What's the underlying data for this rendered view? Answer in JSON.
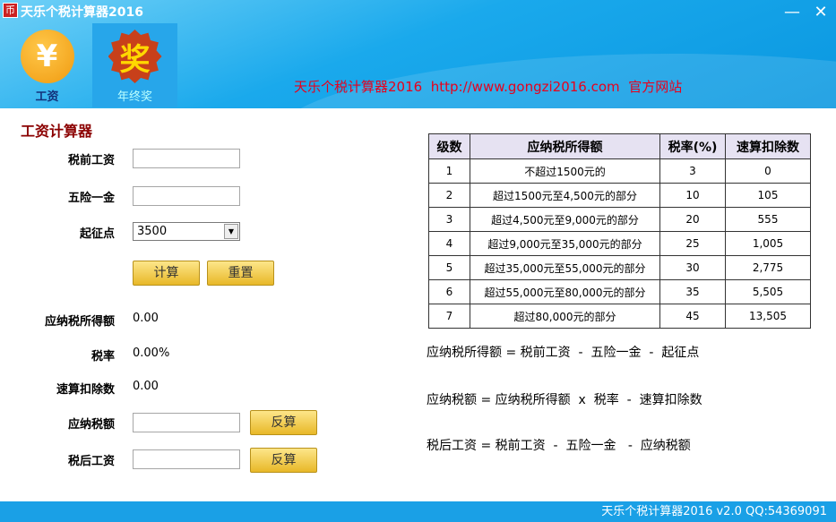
{
  "window": {
    "title": "天乐个税计算器2016",
    "icon_text": "币",
    "minimize": "—",
    "close": "✕"
  },
  "nav": [
    {
      "label": "工资",
      "icon": "yen-coin-icon",
      "glyph": "¥",
      "active": true
    },
    {
      "label": "年终奖",
      "icon": "award-badge-icon",
      "glyph": "奖",
      "active": false
    }
  ],
  "banner": {
    "name": "天乐个税计算器2016",
    "url": "http://www.gongzi2016.com",
    "site": "官方网站"
  },
  "calc": {
    "title": "工资计算器",
    "pretax_label": "税前工资",
    "pretax_value": "",
    "insurance_label": "五险一金",
    "insurance_value": "",
    "threshold_label": "起征点",
    "threshold_value": "3500",
    "calc_button": "计算",
    "reset_button": "重置",
    "taxable_label": "应纳税所得额",
    "taxable_value": "0.00",
    "rate_label": "税率",
    "rate_value": "0.00%",
    "deduction_label": "速算扣除数",
    "deduction_value": "0.00",
    "tax_label": "应纳税额",
    "tax_value": "",
    "reverse_button": "反算",
    "aftertax_label": "税后工资",
    "aftertax_value": "",
    "reverse_button2": "反算"
  },
  "table": {
    "headers": [
      "级数",
      "应纳税所得额",
      "税率(%)",
      "速算扣除数"
    ],
    "rows": [
      [
        "1",
        "不超过1500元的",
        "3",
        "0"
      ],
      [
        "2",
        "超过1500元至4,500元的部分",
        "10",
        "105"
      ],
      [
        "3",
        "超过4,500元至9,000元的部分",
        "20",
        "555"
      ],
      [
        "4",
        "超过9,000元至35,000元的部分",
        "25",
        "1,005"
      ],
      [
        "5",
        "超过35,000元至55,000元的部分",
        "30",
        "2,775"
      ],
      [
        "6",
        "超过55,000元至80,000元的部分",
        "35",
        "5,505"
      ],
      [
        "7",
        "超过80,000元的部分",
        "45",
        "13,505"
      ]
    ]
  },
  "formulas": [
    "应纳税所得额 = 税前工资  -  五险一金  -  起征点",
    "应纳税额 = 应纳税所得额  x  税率  -  速算扣除数",
    "税后工资 = 税前工资  -  五险一金   -  应纳税额"
  ],
  "status": "天乐个税计算器2016 v2.0   QQ:54369091",
  "colors": {
    "header_blue": "#1aa9ec",
    "title_red": "#8b0000",
    "banner_red": "#e8001c",
    "button_gold": "#e8b828"
  }
}
